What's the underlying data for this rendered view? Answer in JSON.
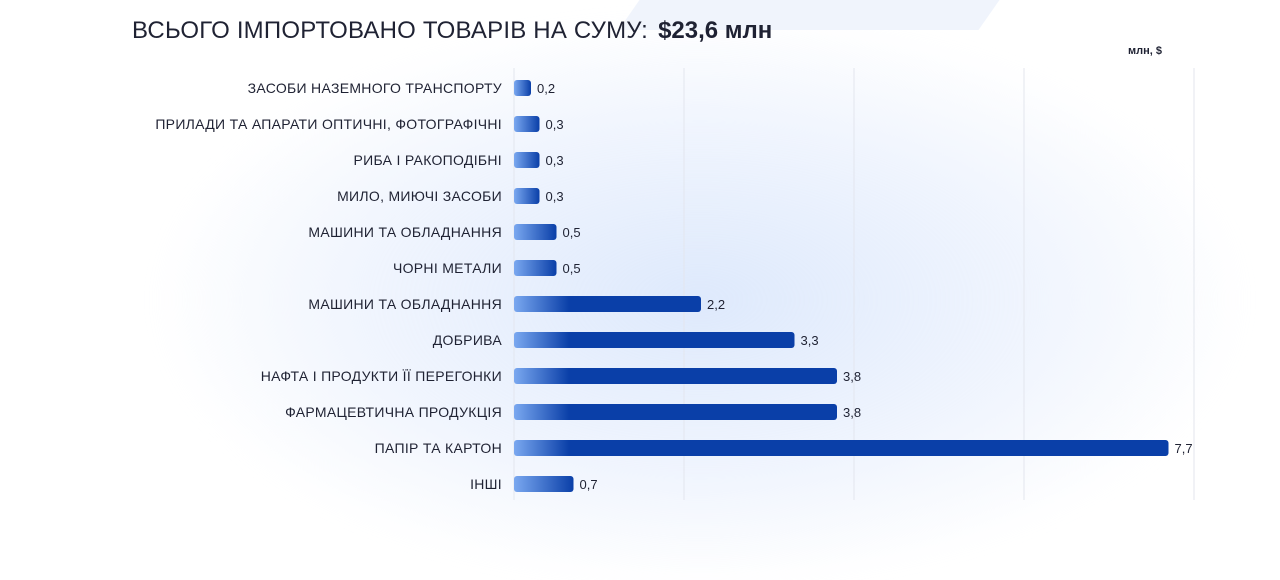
{
  "header": {
    "title": "ВСЬОГО ІМПОРТОВАНО ТОВАРІВ НА СУМУ:",
    "total": "$23,6 млн"
  },
  "colors": {
    "bar_dark": "#0a3fa8",
    "bar_light": "#7aa8f0",
    "grid": "#e3e6ee",
    "text": "#1f2233"
  },
  "chart_data": {
    "type": "bar",
    "orientation": "horizontal",
    "unit": "млн, $",
    "categories": [
      "ЗАСОБИ НАЗЕМНОГО ТРАНСПОРТУ",
      "ПРИЛАДИ ТА АПАРАТИ ОПТИЧНІ, ФОТОГРАФІЧНІ",
      "РИБА І РАКОПОДІБНІ",
      "МИЛО, МИЮЧІ ЗАСОБИ",
      "МАШИНИ ТА ОБЛАДНАННЯ",
      "ЧОРНІ МЕТАЛИ",
      "МАШИНИ ТА ОБЛАДНАННЯ",
      "ДОБРИВА",
      "НАФТА І ПРОДУКТИ ЇЇ ПЕРЕГОНКИ",
      "ФАРМАЦЕВТИЧНА ПРОДУКЦІЯ",
      "ПАПІР ТА КАРТОН",
      "ІНШІ"
    ],
    "values": [
      0.2,
      0.3,
      0.3,
      0.3,
      0.5,
      0.5,
      2.2,
      3.3,
      3.8,
      3.8,
      7.7,
      0.7
    ],
    "value_labels": [
      "0,2",
      "0,3",
      "0,3",
      "0,3",
      "0,5",
      "0,5",
      "2,2",
      "3,3",
      "3,8",
      "3,8",
      "7,7",
      "0,7"
    ],
    "xlim": [
      0,
      8
    ],
    "grid": true,
    "legend": "none"
  }
}
